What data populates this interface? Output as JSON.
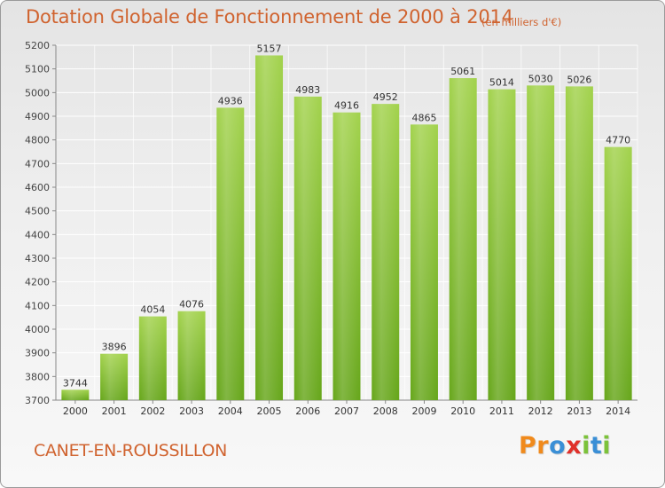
{
  "title": "Dotation Globale de Fonctionnement de 2000 à 2014",
  "unit_label": "(en milliers d'€)",
  "commune": "CANET-EN-ROUSSILLON",
  "brand": {
    "letters": [
      "P",
      "r",
      "o",
      "x",
      "i",
      "t",
      "i"
    ],
    "colors": [
      "#f08a1c",
      "#f08a1c",
      "#3a8fd6",
      "#e0302a",
      "#7cc23a",
      "#3a8fd6",
      "#7cc23a"
    ]
  },
  "chart_data": {
    "type": "bar",
    "title": "Dotation Globale de Fonctionnement de 2000 à 2014",
    "ylabel": "",
    "xlabel": "",
    "categories": [
      "2000",
      "2001",
      "2002",
      "2003",
      "2004",
      "2005",
      "2006",
      "2007",
      "2008",
      "2009",
      "2010",
      "2011",
      "2012",
      "2013",
      "2014"
    ],
    "values": [
      3744,
      3896,
      4054,
      4076,
      4936,
      5157,
      4983,
      4916,
      4952,
      4865,
      5061,
      5014,
      5030,
      5026,
      4770
    ],
    "ylim": [
      3700,
      5200
    ],
    "yticks": [
      3700,
      3800,
      3900,
      4000,
      4100,
      4200,
      4300,
      4400,
      4500,
      4600,
      4700,
      4800,
      4900,
      5000,
      5100,
      5200
    ],
    "grid": true,
    "bar_color_top": "#9ccf45",
    "bar_color_bottom": "#6aa81c"
  }
}
